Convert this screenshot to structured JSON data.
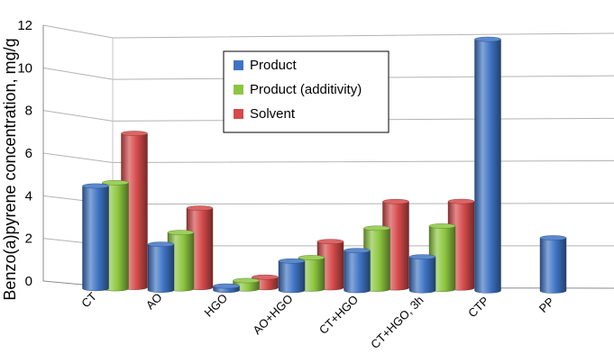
{
  "chart_data": {
    "type": "bar",
    "style": "3d-cylinder",
    "ylabel": "Benzo(a)pyrene concentration, mg/g",
    "xlabel": "",
    "ylim": [
      0,
      12
    ],
    "yticks": [
      "0",
      "2",
      "4",
      "6",
      "8",
      "10",
      "12"
    ],
    "grid": true,
    "legend_position": "top-center",
    "categories": [
      "CT",
      "AO",
      "HGO",
      "AO+HGO",
      "CT+HGO",
      "CT+HGO, 3h",
      "CTP",
      "PP"
    ],
    "series": [
      {
        "name": "Product",
        "color": "#3f74c4",
        "values": [
          4.9,
          2.2,
          0.2,
          1.4,
          1.9,
          1.6,
          11.9,
          2.5
        ]
      },
      {
        "name": "Product (additivity)",
        "color": "#8cc63f",
        "values": [
          5.1,
          2.7,
          0.4,
          1.5,
          2.9,
          3.0,
          null,
          null
        ]
      },
      {
        "name": "Solvent",
        "color": "#d54a4a",
        "values": [
          7.4,
          3.8,
          0.5,
          2.2,
          4.1,
          4.1,
          null,
          null
        ]
      }
    ]
  }
}
